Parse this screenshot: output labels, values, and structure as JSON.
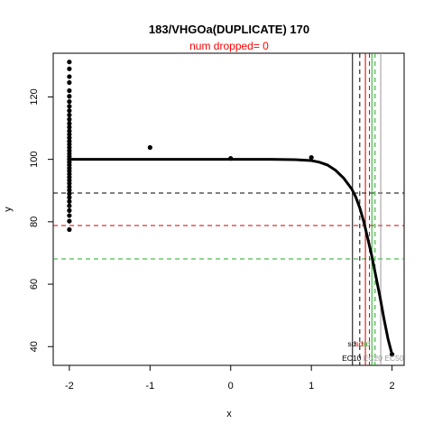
{
  "chart_data": {
    "type": "scatter",
    "title": "183/VHGOa(DUPLICATE) 170",
    "subtitle": "num dropped= 0",
    "xlabel": "x",
    "ylabel": "y",
    "xlim": [
      -2.2,
      2.15
    ],
    "ylim": [
      34,
      134
    ],
    "x_ticks": [
      -2,
      -1,
      0,
      1,
      2
    ],
    "y_ticks": [
      40,
      60,
      80,
      100,
      120
    ],
    "grid": false,
    "colors": {
      "points": "#000000",
      "curve": "#000000",
      "subtitle": "#ff0000",
      "line_black": "#000000",
      "line_red": "#cc0000",
      "line_green": "#22aa22",
      "line_grey": "#999999"
    },
    "points": [
      {
        "x": -2,
        "y": 131.2
      },
      {
        "x": -2,
        "y": 129.0
      },
      {
        "x": -2,
        "y": 126.5
      },
      {
        "x": -2,
        "y": 124.6
      },
      {
        "x": -2,
        "y": 122.0
      },
      {
        "x": -2,
        "y": 120.2
      },
      {
        "x": -2,
        "y": 118.5
      },
      {
        "x": -2,
        "y": 117.0
      },
      {
        "x": -2,
        "y": 115.6
      },
      {
        "x": -2,
        "y": 114.2
      },
      {
        "x": -2,
        "y": 112.8
      },
      {
        "x": -2,
        "y": 111.5
      },
      {
        "x": -2,
        "y": 110.3
      },
      {
        "x": -2,
        "y": 109.1
      },
      {
        "x": -2,
        "y": 108.0
      },
      {
        "x": -2,
        "y": 106.9
      },
      {
        "x": -2,
        "y": 105.8
      },
      {
        "x": -2,
        "y": 104.8
      },
      {
        "x": -2,
        "y": 103.8
      },
      {
        "x": -2,
        "y": 102.8
      },
      {
        "x": -2,
        "y": 101.8
      },
      {
        "x": -2,
        "y": 100.9
      },
      {
        "x": -2,
        "y": 100.0
      },
      {
        "x": -2,
        "y": 99.1
      },
      {
        "x": -2,
        "y": 98.2
      },
      {
        "x": -2,
        "y": 97.2
      },
      {
        "x": -2,
        "y": 96.3
      },
      {
        "x": -2,
        "y": 95.3
      },
      {
        "x": -2,
        "y": 94.3
      },
      {
        "x": -2,
        "y": 93.3
      },
      {
        "x": -2,
        "y": 92.3
      },
      {
        "x": -2,
        "y": 91.2
      },
      {
        "x": -2,
        "y": 90.1
      },
      {
        "x": -2,
        "y": 89.0
      },
      {
        "x": -2,
        "y": 87.8
      },
      {
        "x": -2,
        "y": 86.5
      },
      {
        "x": -2,
        "y": 85.1
      },
      {
        "x": -2,
        "y": 83.6
      },
      {
        "x": -2,
        "y": 82.0
      },
      {
        "x": -2,
        "y": 80.2
      },
      {
        "x": -2,
        "y": 77.5
      },
      {
        "x": -1,
        "y": 103.8
      },
      {
        "x": 0,
        "y": 100.3
      },
      {
        "x": 1,
        "y": 100.6
      },
      {
        "x": 2,
        "y": 37.5
      }
    ],
    "fit_curve": {
      "x": [
        -2.0,
        -1.5,
        -1.0,
        -0.5,
        0.0,
        0.5,
        0.8,
        1.0,
        1.1,
        1.2,
        1.3,
        1.4,
        1.5,
        1.55,
        1.6,
        1.65,
        1.7,
        1.75,
        1.8,
        1.85,
        1.9,
        1.95,
        2.0
      ],
      "y": [
        100,
        100,
        100,
        100,
        100,
        100,
        99.9,
        99.6,
        99.1,
        98.2,
        96.5,
        94.0,
        90.5,
        88.0,
        84.5,
        80.0,
        74.5,
        69.0,
        62.5,
        56.0,
        49.0,
        42.5,
        37.5
      ]
    },
    "horizontal_lines": [
      {
        "y": 89.2,
        "color": "line_black",
        "dashed": true
      },
      {
        "y": 78.8,
        "color": "line_red",
        "dashed": true
      },
      {
        "y": 68.1,
        "color": "line_green",
        "dashed": true
      }
    ],
    "vertical_lines": [
      {
        "x": 1.51,
        "color": "line_black",
        "dashed": false
      },
      {
        "x": 1.6,
        "color": "line_black",
        "dashed": true
      },
      {
        "x": 1.67,
        "color": "line_red",
        "dashed": false
      },
      {
        "x": 1.72,
        "color": "line_red",
        "dashed": true
      },
      {
        "x": 1.75,
        "color": "line_green",
        "dashed": false
      },
      {
        "x": 1.79,
        "color": "line_green",
        "dashed": true
      },
      {
        "x": 1.86,
        "color": "line_grey",
        "dashed": false
      }
    ],
    "ec_labels": {
      "row1": [
        {
          "text": "sd",
          "color": "line_black"
        },
        {
          "text": "sd",
          "color": "line_red"
        },
        {
          "text": "sd",
          "color": "line_green"
        }
      ],
      "row2": [
        {
          "text": "EC10",
          "color": "line_black"
        },
        {
          "text": "EC20",
          "color": "line_grey"
        },
        {
          "text": "EC50",
          "color": "line_grey"
        }
      ]
    }
  }
}
